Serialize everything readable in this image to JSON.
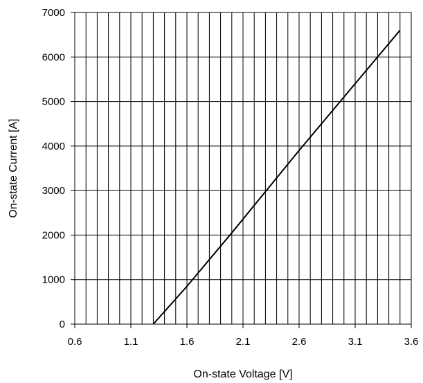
{
  "chart_data": {
    "type": "line",
    "title": "",
    "xlabel": "On-state Voltage [V]",
    "ylabel": "On-state Current [A]",
    "xlim": [
      0.6,
      3.6
    ],
    "ylim": [
      0,
      7000
    ],
    "x_ticks": [
      "0.6",
      "1.1",
      "1.6",
      "2.1",
      "2.6",
      "3.1",
      "3.6"
    ],
    "y_ticks": [
      "0",
      "1000",
      "2000",
      "3000",
      "4000",
      "5000",
      "6000",
      "7000"
    ],
    "x_minor_step": 0.1,
    "grid": true,
    "legend": "none",
    "series": [
      {
        "color": "#000000",
        "x": [
          1.3,
          1.6,
          2.0,
          2.6,
          3.0,
          3.5
        ],
        "y": [
          0,
          850,
          2050,
          3900,
          5100,
          6600
        ]
      }
    ]
  }
}
